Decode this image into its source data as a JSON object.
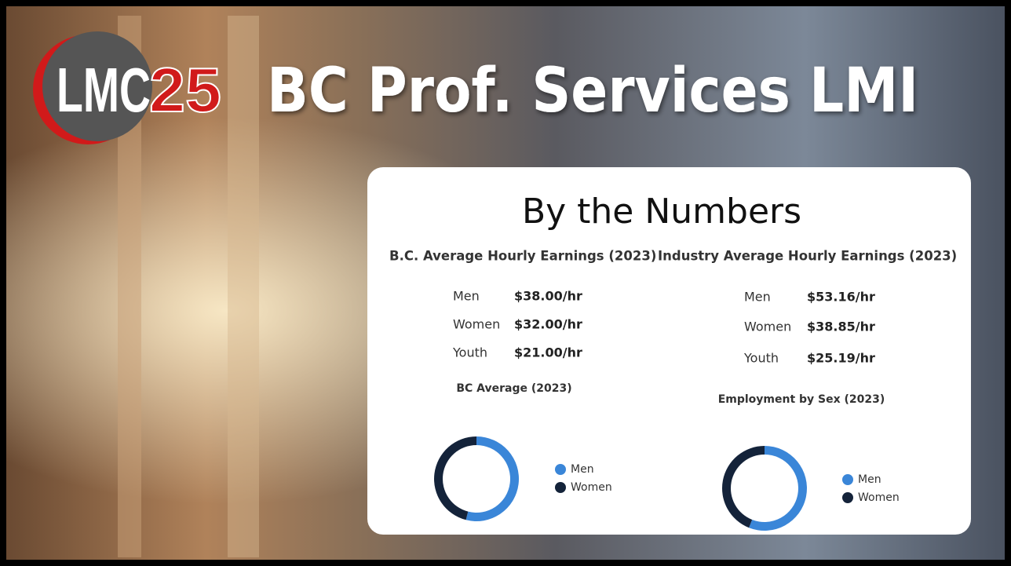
{
  "logo": {
    "text1": "LMC",
    "text2": "25"
  },
  "title": "BC Prof. Services LMI",
  "card": {
    "heading": "By the Numbers",
    "panels": [
      {
        "title": "B.C. Average Hourly Earnings (2023)",
        "rows": [
          [
            "Men",
            "$38.00/hr"
          ],
          [
            "Women",
            "$32.00/hr"
          ],
          [
            "Youth",
            "$21.00/hr"
          ]
        ]
      },
      {
        "title": "Industry Average Hourly Earnings (2023)",
        "rows": [
          [
            "Men",
            "$53.16/hr"
          ],
          [
            "Women",
            "$38.85/hr"
          ],
          [
            "Youth",
            "$25.19/hr"
          ]
        ]
      }
    ]
  },
  "chart_data": [
    {
      "type": "pie",
      "donut": true,
      "title": "BC Average (2023)",
      "categories": [
        "Men",
        "Women"
      ],
      "values": [
        54,
        46
      ],
      "colors": [
        "#3a86d8",
        "#14233a"
      ]
    },
    {
      "type": "pie",
      "donut": true,
      "title": "Employment by Sex (2023)",
      "categories": [
        "Men",
        "Women"
      ],
      "values": [
        56,
        44
      ],
      "colors": [
        "#3a86d8",
        "#14233a"
      ]
    }
  ]
}
